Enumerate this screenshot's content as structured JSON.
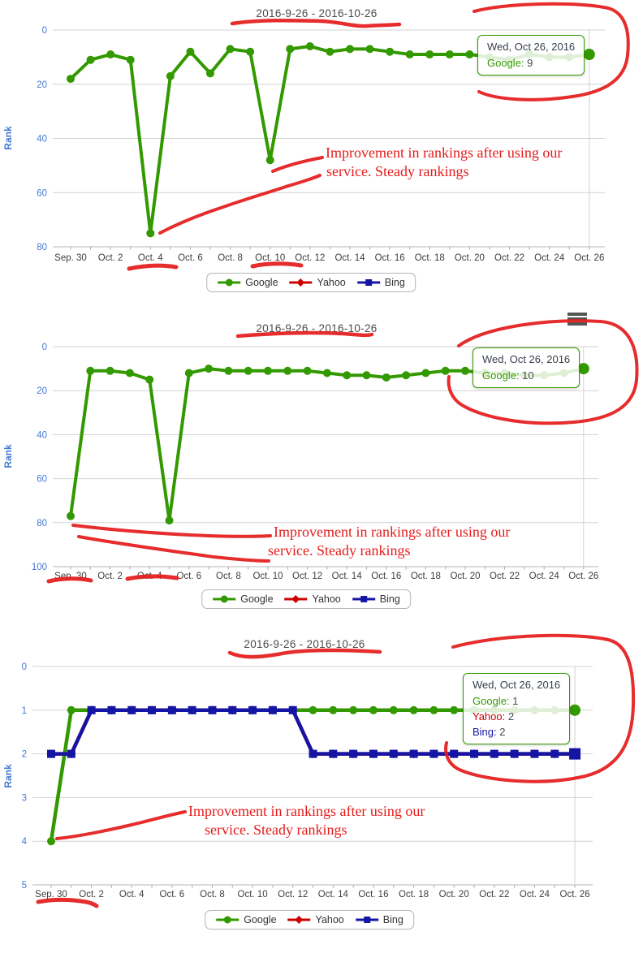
{
  "annotation": {
    "line1": "Improvement in rankings after using our",
    "line2": "service. Steady rankings"
  },
  "legend": {
    "items": [
      {
        "label": "Google",
        "series": "google",
        "marker": "circle"
      },
      {
        "label": "Yahoo",
        "series": "yahoo",
        "marker": "diamond"
      },
      {
        "label": "Bing",
        "series": "bing",
        "marker": "square"
      }
    ]
  },
  "icons": {
    "context_menu": "hamburger-menu"
  },
  "colors": {
    "google": "#339900",
    "yahoo": "#cc0000",
    "bing": "#1515a3",
    "annotation_red": "#e41c1c",
    "axis_label_blue": "#4379d1",
    "grid": "#d2d2d2",
    "xtick_text": "#3d3d3d",
    "title_text": "#4a4a4a",
    "tooltip_title": "#37404d"
  },
  "chart_data": [
    {
      "type": "line",
      "title": "2016-9-26 - 2016-10-26",
      "ylabel": "Rank",
      "y_inverted": true,
      "ylim": [
        0,
        80
      ],
      "yticks": [
        0,
        20,
        40,
        60,
        80
      ],
      "grid": true,
      "legend_position": "bottom",
      "context_menu": false,
      "xtick_labels": [
        "Sep. 30",
        "Oct. 2",
        "Oct. 4",
        "Oct. 6",
        "Oct. 8",
        "Oct. 10",
        "Oct. 12",
        "Oct. 14",
        "Oct. 16",
        "Oct. 18",
        "Oct. 20",
        "Oct. 22",
        "Oct. 24",
        "Oct. 26"
      ],
      "x": [
        "Sep 30",
        "Oct 1",
        "Oct 2",
        "Oct 3",
        "Oct 4",
        "Oct 5",
        "Oct 6",
        "Oct 7",
        "Oct 8",
        "Oct 9",
        "Oct 10",
        "Oct 11",
        "Oct 12",
        "Oct 13",
        "Oct 14",
        "Oct 15",
        "Oct 16",
        "Oct 17",
        "Oct 18",
        "Oct 19",
        "Oct 20",
        "Oct 21",
        "Oct 22",
        "Oct 23",
        "Oct 24",
        "Oct 25",
        "Oct 26"
      ],
      "series": [
        {
          "name": "Google",
          "series_key": "google",
          "marker": "circle",
          "values": [
            18,
            11,
            9,
            11,
            75,
            17,
            8,
            16,
            7,
            8,
            48,
            7,
            6,
            8,
            7,
            7,
            8,
            9,
            9,
            9,
            9,
            10,
            11,
            9,
            10,
            10,
            9
          ]
        }
      ],
      "tooltip": {
        "title": "Wed, Oct 26, 2016",
        "rows": [
          {
            "name": "Google",
            "series_key": "google",
            "value": "9"
          }
        ]
      }
    },
    {
      "type": "line",
      "title": "2016-9-26 - 2016-10-26",
      "ylabel": "Rank",
      "y_inverted": true,
      "ylim": [
        0,
        100
      ],
      "yticks": [
        0,
        20,
        40,
        60,
        80,
        100
      ],
      "grid": true,
      "legend_position": "bottom",
      "context_menu": true,
      "xtick_labels": [
        "Sep. 30",
        "Oct. 2",
        "Oct. 4",
        "Oct. 6",
        "Oct. 8",
        "Oct. 10",
        "Oct. 12",
        "Oct. 14",
        "Oct. 16",
        "Oct. 18",
        "Oct. 20",
        "Oct. 22",
        "Oct. 24",
        "Oct. 26"
      ],
      "x": [
        "Sep 30",
        "Oct 1",
        "Oct 2",
        "Oct 3",
        "Oct 4",
        "Oct 5",
        "Oct 6",
        "Oct 7",
        "Oct 8",
        "Oct 9",
        "Oct 10",
        "Oct 11",
        "Oct 12",
        "Oct 13",
        "Oct 14",
        "Oct 15",
        "Oct 16",
        "Oct 17",
        "Oct 18",
        "Oct 19",
        "Oct 20",
        "Oct 21",
        "Oct 22",
        "Oct 23",
        "Oct 24",
        "Oct 25",
        "Oct 26"
      ],
      "series": [
        {
          "name": "Google",
          "series_key": "google",
          "marker": "circle",
          "values": [
            77,
            11,
            11,
            12,
            15,
            79,
            12,
            10,
            11,
            11,
            11,
            11,
            11,
            12,
            13,
            13,
            14,
            13,
            12,
            11,
            11,
            12,
            12,
            13,
            13,
            12,
            10
          ]
        }
      ],
      "tooltip": {
        "title": "Wed, Oct 26, 2016",
        "rows": [
          {
            "name": "Google",
            "series_key": "google",
            "value": "10"
          }
        ]
      }
    },
    {
      "type": "line",
      "title": "2016-9-26 - 2016-10-26",
      "ylabel": "Rank",
      "y_inverted": true,
      "ylim": [
        0,
        5
      ],
      "yticks": [
        0,
        1,
        2,
        3,
        4,
        5
      ],
      "grid": true,
      "legend_position": "bottom",
      "context_menu": false,
      "xtick_labels": [
        "Sep. 30",
        "Oct. 2",
        "Oct. 4",
        "Oct. 6",
        "Oct. 8",
        "Oct. 10",
        "Oct. 12",
        "Oct. 14",
        "Oct. 16",
        "Oct. 18",
        "Oct. 20",
        "Oct. 22",
        "Oct. 24",
        "Oct. 26"
      ],
      "x": [
        "Sep 30",
        "Oct 1",
        "Oct 2",
        "Oct 3",
        "Oct 4",
        "Oct 5",
        "Oct 6",
        "Oct 7",
        "Oct 8",
        "Oct 9",
        "Oct 10",
        "Oct 11",
        "Oct 12",
        "Oct 13",
        "Oct 14",
        "Oct 15",
        "Oct 16",
        "Oct 17",
        "Oct 18",
        "Oct 19",
        "Oct 20",
        "Oct 21",
        "Oct 22",
        "Oct 23",
        "Oct 24",
        "Oct 25",
        "Oct 26"
      ],
      "series": [
        {
          "name": "Google",
          "series_key": "google",
          "marker": "circle",
          "values": [
            4,
            1,
            1,
            1,
            1,
            1,
            1,
            1,
            1,
            1,
            1,
            1,
            1,
            1,
            1,
            1,
            1,
            1,
            1,
            1,
            1,
            1,
            1,
            1,
            1,
            1,
            1
          ]
        },
        {
          "name": "Yahoo",
          "series_key": "yahoo",
          "marker": "diamond",
          "hidden_behind_bing": true,
          "values": [
            2,
            2,
            1,
            1,
            1,
            1,
            1,
            1,
            1,
            1,
            1,
            1,
            1,
            2,
            2,
            2,
            2,
            2,
            2,
            2,
            2,
            2,
            2,
            2,
            2,
            2,
            2
          ]
        },
        {
          "name": "Bing",
          "series_key": "bing",
          "marker": "square",
          "values": [
            2,
            2,
            1,
            1,
            1,
            1,
            1,
            1,
            1,
            1,
            1,
            1,
            1,
            2,
            2,
            2,
            2,
            2,
            2,
            2,
            2,
            2,
            2,
            2,
            2,
            2,
            2
          ]
        }
      ],
      "tooltip": {
        "title": "Wed, Oct 26, 2016",
        "rows": [
          {
            "name": "Google",
            "series_key": "google",
            "value": "1"
          },
          {
            "name": "Yahoo",
            "series_key": "yahoo",
            "value": "2"
          },
          {
            "name": "Bing",
            "series_key": "bing",
            "value": "2"
          }
        ]
      }
    }
  ]
}
